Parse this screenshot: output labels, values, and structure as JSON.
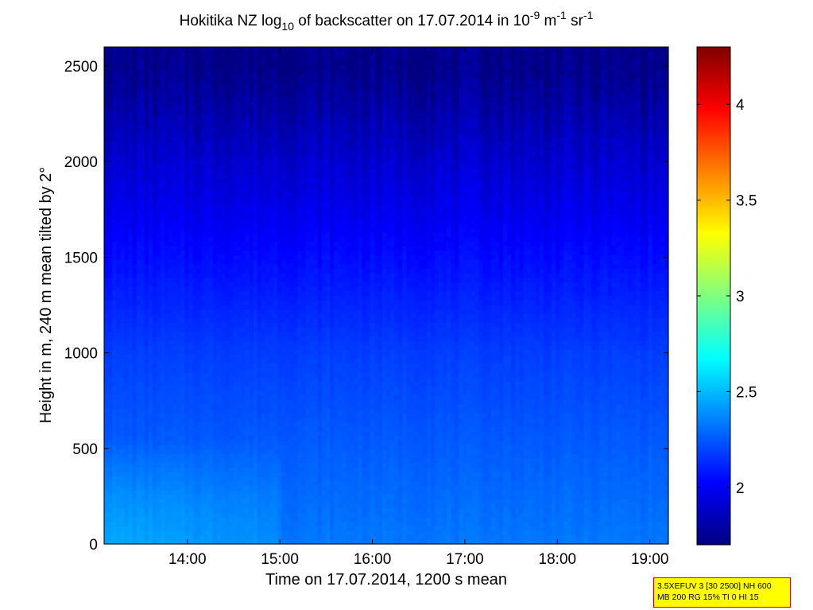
{
  "chart_data": {
    "type": "heatmap",
    "title": {
      "t1": "Hokitika NZ log",
      "t1_sub": "10",
      "t2": " of backscatter on 17.07.2014 in 10",
      "t2_sup": "-9",
      "t3": " m",
      "t3_sup": "-1",
      "t4": " sr",
      "t4_sup": "-1"
    },
    "xlabel": "Time on 17.07.2014, 1200 s mean",
    "ylabel": "Height in m, 240 m mean tilted by 2°",
    "xlim_hours": [
      13.1,
      19.2
    ],
    "ylim": [
      0,
      2600
    ],
    "x_ticks": [
      {
        "value": 14,
        "label": "14:00"
      },
      {
        "value": 15,
        "label": "15:00"
      },
      {
        "value": 16,
        "label": "16:00"
      },
      {
        "value": 17,
        "label": "17:00"
      },
      {
        "value": 18,
        "label": "18:00"
      },
      {
        "value": 19,
        "label": "19:00"
      }
    ],
    "y_ticks": [
      {
        "value": 0,
        "label": "0"
      },
      {
        "value": 500,
        "label": "500"
      },
      {
        "value": 1000,
        "label": "1000"
      },
      {
        "value": 1500,
        "label": "1500"
      },
      {
        "value": 2000,
        "label": "2000"
      },
      {
        "value": 2500,
        "label": "2500"
      }
    ],
    "colorbar": {
      "colormap": "jet",
      "clim": [
        1.7,
        4.3
      ],
      "ticks": [
        {
          "value": 2,
          "label": "2"
        },
        {
          "value": 2.5,
          "label": "2.5"
        },
        {
          "value": 3,
          "label": "3"
        },
        {
          "value": 3.5,
          "label": "3.5"
        },
        {
          "value": 4,
          "label": "4"
        }
      ]
    },
    "field": {
      "description_levels_by_height": [
        {
          "height": 0,
          "value": 2.33
        },
        {
          "height": 500,
          "value": 2.26
        },
        {
          "height": 1000,
          "value": 2.18
        },
        {
          "height": 1500,
          "value": 2.05
        },
        {
          "height": 2000,
          "value": 1.9
        },
        {
          "height": 2500,
          "value": 1.72
        }
      ],
      "enhanced_region": {
        "x_hours": [
          13.1,
          15.0
        ],
        "height": [
          0,
          550
        ],
        "value": 2.42
      }
    },
    "grid": false
  },
  "info_box": {
    "line1": "3.5XEFUV 3 [30 2500] NH 600",
    "line2": "MB 200 RG 15% TI 0 HI 15"
  },
  "colors": {
    "info_box_bg": "#ffff00",
    "info_box_border": "#d00000"
  }
}
